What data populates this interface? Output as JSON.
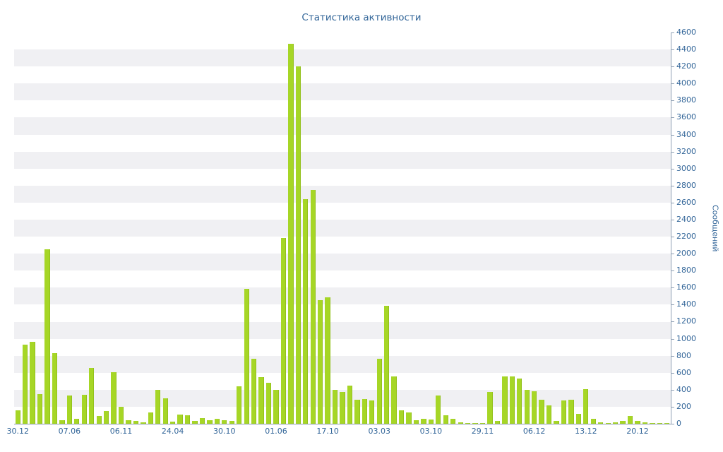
{
  "chart_data": {
    "type": "bar",
    "title": "Статистика активности",
    "ylabel": "Сообщений",
    "xlabel": "",
    "ylim": [
      0,
      4600
    ],
    "ytick_step": 200,
    "grid": "horizontal-stripes",
    "legend": null,
    "colors": {
      "text": "#336699",
      "bar": "#a6d626",
      "stripe": "#f0f0f3",
      "axis": "#8fa0b4",
      "background": "#ffffff"
    },
    "values": [
      160,
      930,
      960,
      350,
      2050,
      830,
      40,
      330,
      60,
      340,
      660,
      90,
      150,
      610,
      200,
      40,
      30,
      20,
      130,
      400,
      300,
      25,
      110,
      100,
      35,
      70,
      45,
      55,
      40,
      30,
      440,
      1590,
      760,
      550,
      480,
      400,
      2180,
      4470,
      4200,
      2640,
      2750,
      1450,
      1490,
      400,
      370,
      450,
      280,
      290,
      270,
      760,
      1390,
      560,
      160,
      130,
      40,
      60,
      50,
      330,
      100,
      60,
      20,
      10,
      8,
      10,
      370,
      30,
      560,
      560,
      530,
      400,
      380,
      280,
      220,
      35,
      270,
      280,
      120,
      410,
      60,
      20,
      12,
      20,
      30,
      90,
      30,
      15,
      10,
      8,
      6
    ],
    "x_tick_labels": [
      {
        "index": 0,
        "label": "30.12"
      },
      {
        "index": 7,
        "label": "07.06"
      },
      {
        "index": 14,
        "label": "06.11"
      },
      {
        "index": 21,
        "label": "24.04"
      },
      {
        "index": 28,
        "label": "30.10"
      },
      {
        "index": 35,
        "label": "01.06"
      },
      {
        "index": 42,
        "label": "17.10"
      },
      {
        "index": 49,
        "label": "03.03"
      },
      {
        "index": 56,
        "label": "03.10"
      },
      {
        "index": 63,
        "label": "29.11"
      },
      {
        "index": 70,
        "label": "06.12"
      },
      {
        "index": 77,
        "label": "13.12"
      },
      {
        "index": 84,
        "label": "20.12"
      }
    ]
  }
}
